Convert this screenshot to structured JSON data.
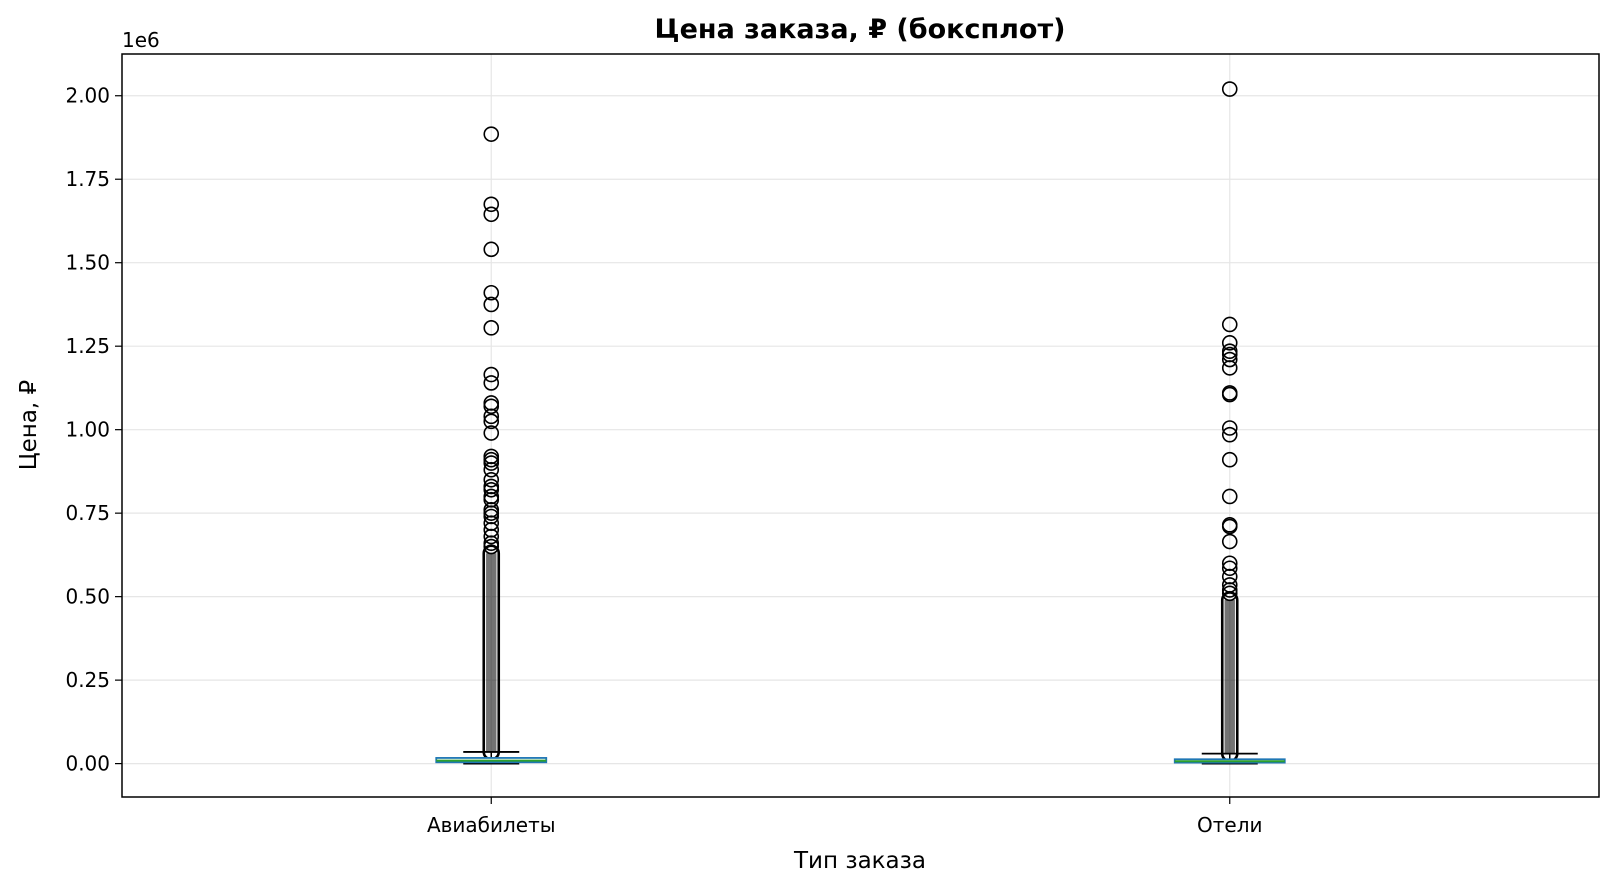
{
  "chart_data": {
    "type": "boxplot",
    "title": "Цена заказа, ₽ (боксплот)",
    "xlabel": "Тип заказа",
    "ylabel": "Цена, ₽",
    "y_offset_label": "1e6",
    "ylim": [
      -0.1,
      2.125
    ],
    "yticks": [
      0.0,
      0.25,
      0.5,
      0.75,
      1.0,
      1.25,
      1.5,
      1.75,
      2.0
    ],
    "ytick_labels": [
      "0.00",
      "0.25",
      "0.50",
      "0.75",
      "1.00",
      "1.25",
      "1.50",
      "1.75",
      "2.00"
    ],
    "grid": true,
    "categories": [
      "Авиабилеты",
      "Отели"
    ],
    "colors": {
      "box": "#1f77b4",
      "median": "#2ca02c",
      "whisker": "#000000",
      "flier_edge": "#000000",
      "grid": "#e6e6e6"
    },
    "boxes": [
      {
        "category": "Авиабилеты",
        "whisker_low": 0.0,
        "q1": 0.004,
        "median": 0.009,
        "q3": 0.017,
        "whisker_high": 0.035,
        "outliers": [
          1.885,
          1.675,
          1.645,
          1.54,
          1.41,
          1.375,
          1.305,
          1.165,
          1.14,
          1.08,
          1.07,
          1.04,
          1.025,
          0.99,
          0.92,
          0.91,
          0.9,
          0.88,
          0.85,
          0.83,
          0.82,
          0.8,
          0.79,
          0.76,
          0.75,
          0.74,
          0.72,
          0.7,
          0.68,
          0.66,
          0.65
        ],
        "dense_outlier_range": [
          0.035,
          0.63
        ]
      },
      {
        "category": "Отели",
        "whisker_low": 0.0,
        "q1": 0.003,
        "median": 0.007,
        "q3": 0.013,
        "whisker_high": 0.03,
        "outliers": [
          2.02,
          1.315,
          1.26,
          1.235,
          1.225,
          1.21,
          1.185,
          1.11,
          1.105,
          1.005,
          0.985,
          0.91,
          0.8,
          0.715,
          0.71,
          0.665,
          0.6,
          0.585,
          0.56,
          0.535,
          0.52,
          0.51
        ],
        "dense_outlier_range": [
          0.03,
          0.49
        ]
      }
    ]
  }
}
